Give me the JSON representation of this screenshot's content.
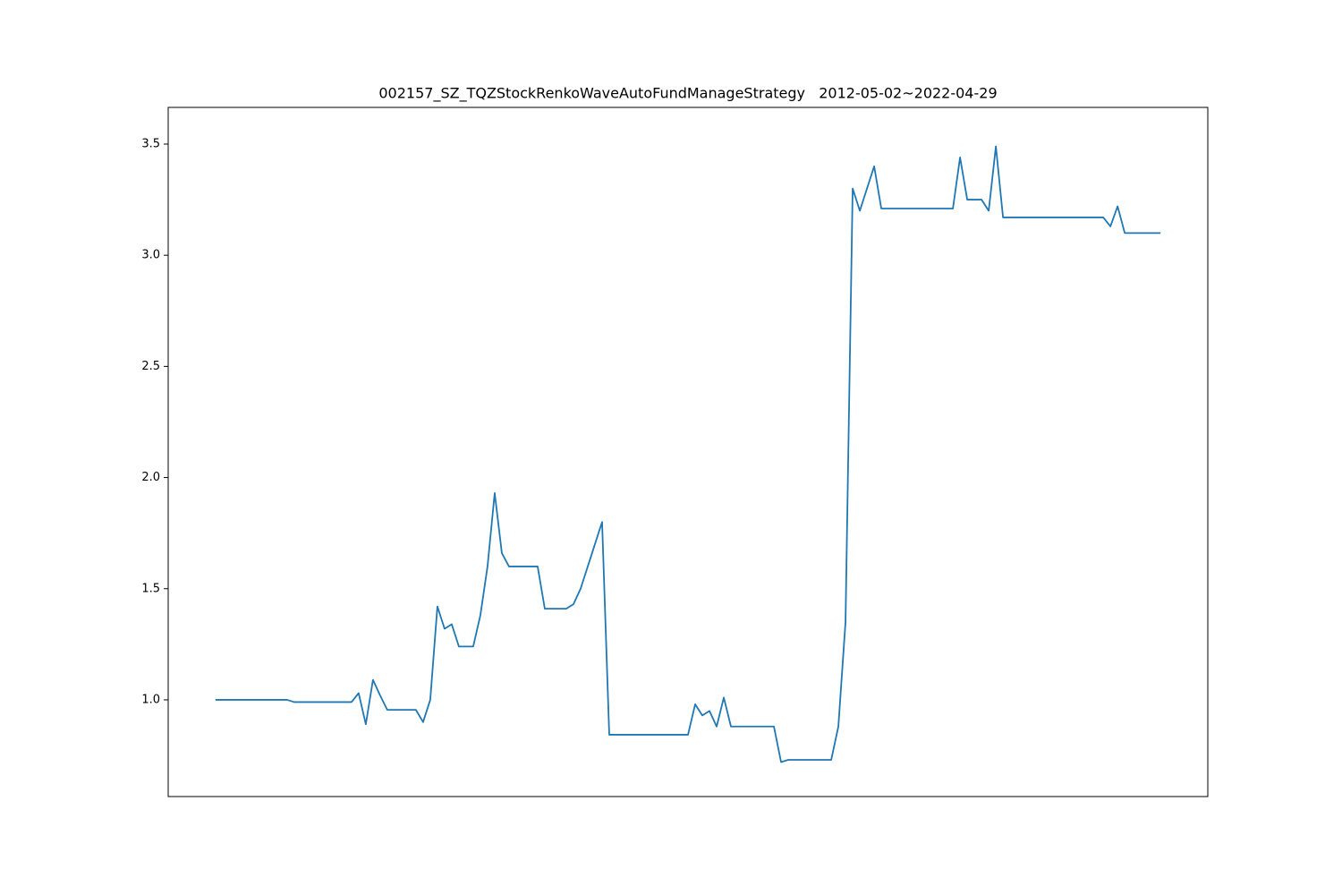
{
  "chart_data": {
    "type": "line",
    "title": "002157_SZ_TQZStockRenkoWaveAutoFundManageStrategy   2012-05-02~2022-04-29",
    "color": "#1f77b4",
    "values": [
      1.0,
      1.0,
      1.0,
      1.0,
      1.0,
      1.0,
      1.0,
      1.0,
      1.0,
      1.0,
      1.0,
      0.99,
      0.99,
      0.99,
      0.99,
      0.99,
      0.99,
      0.99,
      0.99,
      0.99,
      1.03,
      0.89,
      1.09,
      1.02,
      0.955,
      0.955,
      0.955,
      0.955,
      0.955,
      0.9,
      1.0,
      1.42,
      1.32,
      1.34,
      1.24,
      1.24,
      1.24,
      1.38,
      1.6,
      1.93,
      1.66,
      1.6,
      1.6,
      1.6,
      1.6,
      1.6,
      1.41,
      1.41,
      1.41,
      1.41,
      1.43,
      1.5,
      1.6,
      1.7,
      1.8,
      0.843,
      0.843,
      0.843,
      0.843,
      0.843,
      0.843,
      0.843,
      0.843,
      0.843,
      0.843,
      0.843,
      0.843,
      0.98,
      0.93,
      0.95,
      0.88,
      1.01,
      0.88,
      0.88,
      0.88,
      0.88,
      0.88,
      0.88,
      0.88,
      0.72,
      0.73,
      0.73,
      0.73,
      0.73,
      0.73,
      0.73,
      0.73,
      0.88,
      1.35,
      3.3,
      3.2,
      3.3,
      3.4,
      3.21,
      3.21,
      3.21,
      3.21,
      3.21,
      3.21,
      3.21,
      3.21,
      3.21,
      3.21,
      3.21,
      3.44,
      3.25,
      3.25,
      3.25,
      3.2,
      3.49,
      3.17,
      3.17,
      3.17,
      3.17,
      3.17,
      3.17,
      3.17,
      3.17,
      3.17,
      3.17,
      3.17,
      3.17,
      3.17,
      3.17,
      3.17,
      3.13,
      3.22,
      3.1,
      3.1,
      3.1,
      3.1,
      3.1,
      3.1
    ],
    "ylim": [
      0.565,
      3.665
    ],
    "yticks": [
      {
        "value": 1,
        "label": "1.0"
      },
      1.5,
      {
        "value": 2,
        "label": "2.0"
      },
      2.5,
      {
        "value": 3,
        "label": "3.0"
      },
      3.5
    ],
    "grid": false
  }
}
